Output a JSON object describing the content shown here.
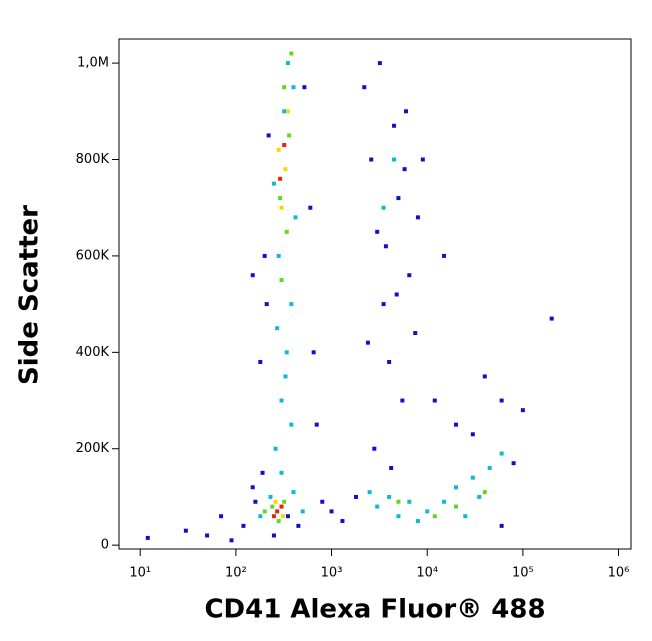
{
  "chart_data": {
    "type": "scatter",
    "x_label": "CD41 Alexa Fluor® 488",
    "y_label": "Side Scatter",
    "xscale": "log",
    "xlim": [
      6,
      1350000
    ],
    "ylim": [
      -8000,
      1050000
    ],
    "xticks": [
      {
        "value": 10,
        "label": "10¹"
      },
      {
        "value": 100,
        "label": "10²"
      },
      {
        "value": 1000,
        "label": "10³"
      },
      {
        "value": 10000,
        "label": "10⁴"
      },
      {
        "value": 100000,
        "label": "10⁵"
      },
      {
        "value": 1000000,
        "label": "10⁶"
      }
    ],
    "yticks": [
      0,
      {
        "value": 200000,
        "label": "200K"
      },
      {
        "value": 400000,
        "label": "400K"
      },
      {
        "value": 600000,
        "label": "600K"
      },
      {
        "value": 800000,
        "label": "800K"
      },
      {
        "value": 1000000,
        "label": "1,0M"
      }
    ],
    "series": [
      {
        "color": "#1010c8",
        "x": [
          12,
          30,
          50,
          70,
          90,
          120,
          150,
          180,
          200,
          190,
          220,
          210,
          520,
          600,
          650,
          700,
          800,
          1000,
          1300,
          1800,
          2200,
          2600,
          3000,
          3500,
          4000,
          4500,
          5000,
          5500,
          6500,
          7500,
          2800,
          3200,
          4200,
          6000,
          9000,
          12000,
          20000,
          40000,
          60000,
          80000,
          100000,
          200000,
          150,
          2400,
          3700,
          4800,
          5800,
          8000,
          15000,
          350,
          450,
          250,
          160,
          60000,
          30000
        ],
        "values": [
          15000,
          30000,
          20000,
          60000,
          10000,
          40000,
          120000,
          380000,
          600000,
          150000,
          850000,
          500000,
          950000,
          700000,
          400000,
          250000,
          90000,
          70000,
          50000,
          100000,
          950000,
          800000,
          650000,
          500000,
          380000,
          870000,
          720000,
          300000,
          560000,
          440000,
          200000,
          1000000,
          160000,
          900000,
          800000,
          300000,
          250000,
          350000,
          300000,
          170000,
          280000,
          470000,
          560000,
          420000,
          620000,
          520000,
          780000,
          680000,
          600000,
          60000,
          40000,
          20000,
          90000,
          40000,
          230000
        ]
      },
      {
        "color": "#10b8d8",
        "x": [
          260,
          300,
          340,
          380,
          280,
          320,
          400,
          350,
          250,
          420,
          300,
          380,
          180,
          400,
          500,
          230,
          3000,
          4000,
          5000,
          6500,
          10000,
          15000,
          20000,
          30000,
          45000,
          60000,
          2500,
          8000,
          25000,
          35000,
          3500,
          4500,
          330,
          270
        ],
        "values": [
          200000,
          300000,
          400000,
          500000,
          600000,
          900000,
          950000,
          1000000,
          750000,
          680000,
          150000,
          250000,
          60000,
          110000,
          70000,
          100000,
          80000,
          100000,
          60000,
          90000,
          70000,
          90000,
          120000,
          140000,
          160000,
          190000,
          110000,
          50000,
          60000,
          100000,
          700000,
          800000,
          350000,
          450000
        ]
      },
      {
        "color": "#60d820",
        "x": [
          300,
          340,
          290,
          360,
          320,
          380,
          240,
          320,
          280,
          200,
          12000,
          20000,
          40000,
          5000
        ],
        "values": [
          550000,
          650000,
          720000,
          850000,
          950000,
          1020000,
          80000,
          90000,
          50000,
          70000,
          60000,
          80000,
          110000,
          90000
        ]
      },
      {
        "color": "#f8d800",
        "x": [
          300,
          330,
          280,
          350,
          260,
          310
        ],
        "values": [
          700000,
          780000,
          820000,
          900000,
          90000,
          60000
        ]
      },
      {
        "color": "#f02000",
        "x": [
          290,
          320,
          270,
          250,
          300
        ],
        "values": [
          760000,
          830000,
          70000,
          60000,
          80000
        ]
      }
    ]
  }
}
